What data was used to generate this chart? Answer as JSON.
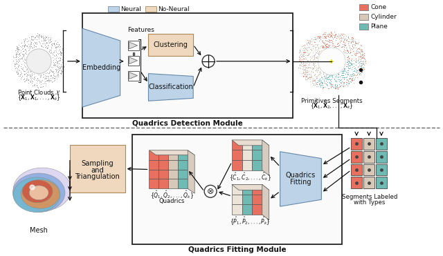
{
  "fig_width": 6.4,
  "fig_height": 3.71,
  "dpi": 100,
  "bg_color": "#ffffff",
  "neural_color": "#bdd4e8",
  "no_neural_color": "#f0d8be",
  "teal_color": "#70bab4",
  "salmon_color": "#e87060",
  "beige_color": "#d8c8b8",
  "module_border": "#222222",
  "text_color": "#111111",
  "arrow_color": "#111111",
  "top_module_label": "Quadrics Detection Module",
  "bottom_module_label": "Quadrics Fitting Module",
  "legend1_items": [
    "Neural",
    "No-Neural"
  ],
  "legend1_colors": [
    "#bdd4e8",
    "#f0d8be"
  ],
  "legend2_items": [
    "Cone",
    "Cylinder",
    "Plane"
  ],
  "legend2_colors": [
    "#e87060",
    "#d8c8b8",
    "#70bab4"
  ]
}
